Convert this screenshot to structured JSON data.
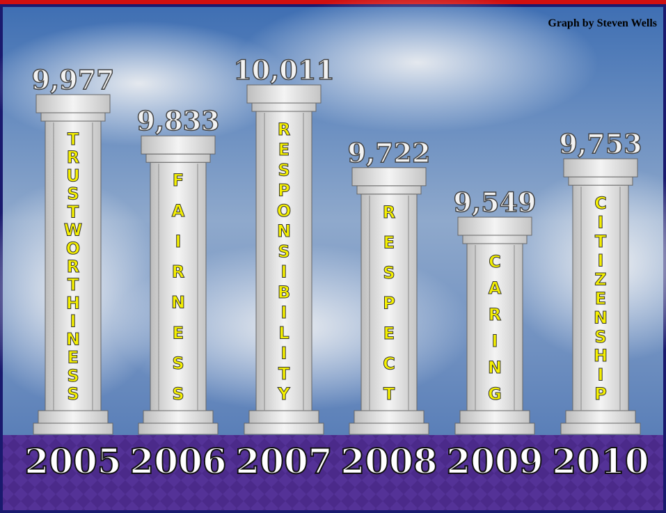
{
  "chart_data": {
    "type": "pillar",
    "credit": "Graph by Steven Wells",
    "categories": [
      "2005",
      "2006",
      "2007",
      "2008",
      "2009",
      "2010"
    ],
    "labels": [
      "TRUSTWORTHINESS",
      "FAIRNESS",
      "RESPONSIBILITY",
      "RESPECT",
      "CARING",
      "CITIZENSHIP"
    ],
    "values": [
      9977,
      9833,
      10011,
      9722,
      9549,
      9753
    ],
    "value_labels": [
      "9,977",
      "9,833",
      "10,011",
      "9,722",
      "9,549",
      "9,753"
    ],
    "label_color": "#f5f000"
  }
}
